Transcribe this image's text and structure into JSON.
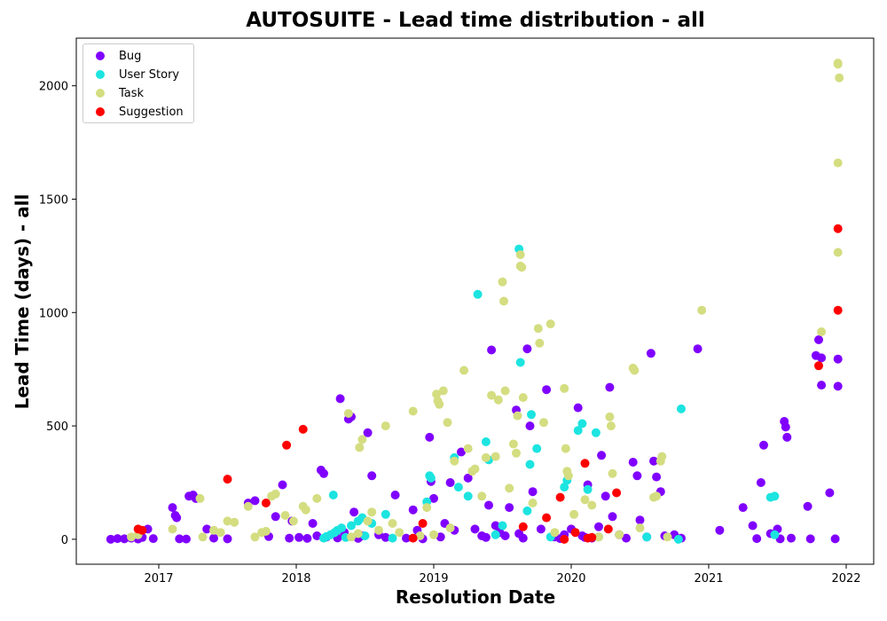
{
  "chart_data": {
    "type": "scatter",
    "title": "AUTOSUITE - Lead time distribution - all",
    "xlabel": "Resolution Date",
    "ylabel": "Lead Time (days) - all",
    "xlim": [
      2016.4,
      2022.2
    ],
    "ylim": [
      -110,
      2210
    ],
    "xticks": [
      2017,
      2018,
      2019,
      2020,
      2021,
      2022
    ],
    "yticks": [
      0,
      500,
      1000,
      1500,
      2000
    ],
    "grid": false,
    "legend_position": "top-left",
    "series": [
      {
        "name": "Bug",
        "color": "#8000ff",
        "points": [
          [
            2016.65,
            0
          ],
          [
            2016.7,
            3
          ],
          [
            2016.75,
            2
          ],
          [
            2016.8,
            5
          ],
          [
            2016.85,
            1
          ],
          [
            2016.88,
            8
          ],
          [
            2016.92,
            45
          ],
          [
            2016.96,
            3
          ],
          [
            2017.1,
            140
          ],
          [
            2017.12,
            105
          ],
          [
            2017.13,
            95
          ],
          [
            2017.15,
            2
          ],
          [
            2017.2,
            1
          ],
          [
            2017.22,
            190
          ],
          [
            2017.25,
            195
          ],
          [
            2017.27,
            180
          ],
          [
            2017.35,
            45
          ],
          [
            2017.4,
            5
          ],
          [
            2017.5,
            2
          ],
          [
            2017.65,
            160
          ],
          [
            2017.7,
            170
          ],
          [
            2017.8,
            12
          ],
          [
            2017.85,
            100
          ],
          [
            2017.9,
            240
          ],
          [
            2017.95,
            5
          ],
          [
            2017.97,
            80
          ],
          [
            2018.02,
            8
          ],
          [
            2018.08,
            4
          ],
          [
            2018.12,
            70
          ],
          [
            2018.15,
            15
          ],
          [
            2018.18,
            305
          ],
          [
            2018.2,
            290
          ],
          [
            2018.22,
            10
          ],
          [
            2018.3,
            6
          ],
          [
            2018.32,
            620
          ],
          [
            2018.35,
            30
          ],
          [
            2018.38,
            530
          ],
          [
            2018.4,
            540
          ],
          [
            2018.42,
            120
          ],
          [
            2018.45,
            4
          ],
          [
            2018.48,
            15
          ],
          [
            2018.52,
            470
          ],
          [
            2018.55,
            280
          ],
          [
            2018.6,
            20
          ],
          [
            2018.65,
            8
          ],
          [
            2018.72,
            195
          ],
          [
            2018.8,
            5
          ],
          [
            2018.85,
            130
          ],
          [
            2018.88,
            40
          ],
          [
            2018.92,
            2
          ],
          [
            2018.97,
            450
          ],
          [
            2018.98,
            255
          ],
          [
            2019.0,
            180
          ],
          [
            2019.05,
            10
          ],
          [
            2019.08,
            70
          ],
          [
            2019.12,
            250
          ],
          [
            2019.15,
            40
          ],
          [
            2019.2,
            385
          ],
          [
            2019.25,
            270
          ],
          [
            2019.3,
            45
          ],
          [
            2019.35,
            15
          ],
          [
            2019.38,
            8
          ],
          [
            2019.4,
            150
          ],
          [
            2019.42,
            835
          ],
          [
            2019.45,
            60
          ],
          [
            2019.48,
            30
          ],
          [
            2019.52,
            15
          ],
          [
            2019.55,
            140
          ],
          [
            2019.6,
            570
          ],
          [
            2019.62,
            25
          ],
          [
            2019.65,
            5
          ],
          [
            2019.68,
            840
          ],
          [
            2019.7,
            500
          ],
          [
            2019.72,
            210
          ],
          [
            2019.78,
            45
          ],
          [
            2019.82,
            660
          ],
          [
            2019.88,
            10
          ],
          [
            2019.92,
            3
          ],
          [
            2019.95,
            20
          ],
          [
            2020.0,
            45
          ],
          [
            2020.05,
            580
          ],
          [
            2020.08,
            15
          ],
          [
            2020.1,
            8
          ],
          [
            2020.12,
            240
          ],
          [
            2020.15,
            5
          ],
          [
            2020.2,
            55
          ],
          [
            2020.22,
            370
          ],
          [
            2020.25,
            190
          ],
          [
            2020.28,
            670
          ],
          [
            2020.3,
            100
          ],
          [
            2020.35,
            20
          ],
          [
            2020.4,
            5
          ],
          [
            2020.45,
            340
          ],
          [
            2020.48,
            280
          ],
          [
            2020.5,
            85
          ],
          [
            2020.55,
            10
          ],
          [
            2020.58,
            820
          ],
          [
            2020.6,
            345
          ],
          [
            2020.62,
            275
          ],
          [
            2020.65,
            210
          ],
          [
            2020.68,
            15
          ],
          [
            2020.75,
            20
          ],
          [
            2020.8,
            5
          ],
          [
            2020.92,
            840
          ],
          [
            2021.08,
            40
          ],
          [
            2021.25,
            140
          ],
          [
            2021.32,
            60
          ],
          [
            2021.35,
            3
          ],
          [
            2021.38,
            250
          ],
          [
            2021.4,
            415
          ],
          [
            2021.45,
            25
          ],
          [
            2021.5,
            45
          ],
          [
            2021.52,
            2
          ],
          [
            2021.55,
            520
          ],
          [
            2021.56,
            495
          ],
          [
            2021.57,
            450
          ],
          [
            2021.6,
            5
          ],
          [
            2021.72,
            145
          ],
          [
            2021.74,
            2
          ],
          [
            2021.78,
            810
          ],
          [
            2021.8,
            880
          ],
          [
            2021.82,
            800
          ],
          [
            2021.82,
            680
          ],
          [
            2021.88,
            205
          ],
          [
            2021.92,
            2
          ],
          [
            2021.94,
            795
          ],
          [
            2021.94,
            675
          ]
        ]
      },
      {
        "name": "User Story",
        "color": "#1ce4e0",
        "points": [
          [
            2018.2,
            5
          ],
          [
            2018.22,
            12
          ],
          [
            2018.25,
            20
          ],
          [
            2018.27,
            195
          ],
          [
            2018.28,
            30
          ],
          [
            2018.3,
            40
          ],
          [
            2018.33,
            50
          ],
          [
            2018.36,
            8
          ],
          [
            2018.4,
            60
          ],
          [
            2018.45,
            80
          ],
          [
            2018.48,
            95
          ],
          [
            2018.5,
            15
          ],
          [
            2018.55,
            70
          ],
          [
            2018.65,
            110
          ],
          [
            2018.7,
            5
          ],
          [
            2018.95,
            165
          ],
          [
            2018.97,
            280
          ],
          [
            2018.98,
            270
          ],
          [
            2019.15,
            360
          ],
          [
            2019.18,
            230
          ],
          [
            2019.25,
            190
          ],
          [
            2019.32,
            1080
          ],
          [
            2019.38,
            430
          ],
          [
            2019.4,
            350
          ],
          [
            2019.45,
            20
          ],
          [
            2019.5,
            60
          ],
          [
            2019.62,
            1280
          ],
          [
            2019.63,
            780
          ],
          [
            2019.68,
            125
          ],
          [
            2019.7,
            330
          ],
          [
            2019.71,
            550
          ],
          [
            2019.75,
            400
          ],
          [
            2019.85,
            10
          ],
          [
            2019.95,
            230
          ],
          [
            2019.97,
            260
          ],
          [
            2020.05,
            480
          ],
          [
            2020.08,
            510
          ],
          [
            2020.12,
            220
          ],
          [
            2020.18,
            470
          ],
          [
            2020.2,
            10
          ],
          [
            2020.55,
            10
          ],
          [
            2020.78,
            0
          ],
          [
            2020.8,
            575
          ],
          [
            2021.45,
            185
          ],
          [
            2021.48,
            190
          ],
          [
            2021.48,
            20
          ]
        ]
      },
      {
        "name": "Task",
        "color": "#d4dd80",
        "points": [
          [
            2016.8,
            10
          ],
          [
            2016.85,
            20
          ],
          [
            2017.1,
            45
          ],
          [
            2017.3,
            180
          ],
          [
            2017.32,
            10
          ],
          [
            2017.4,
            40
          ],
          [
            2017.45,
            30
          ],
          [
            2017.5,
            80
          ],
          [
            2017.55,
            75
          ],
          [
            2017.65,
            145
          ],
          [
            2017.7,
            10
          ],
          [
            2017.75,
            30
          ],
          [
            2017.78,
            35
          ],
          [
            2017.82,
            190
          ],
          [
            2017.85,
            200
          ],
          [
            2017.92,
            105
          ],
          [
            2017.98,
            80
          ],
          [
            2018.05,
            145
          ],
          [
            2018.07,
            130
          ],
          [
            2018.15,
            180
          ],
          [
            2018.38,
            555
          ],
          [
            2018.4,
            10
          ],
          [
            2018.45,
            25
          ],
          [
            2018.46,
            405
          ],
          [
            2018.48,
            440
          ],
          [
            2018.52,
            80
          ],
          [
            2018.55,
            120
          ],
          [
            2018.6,
            40
          ],
          [
            2018.65,
            500
          ],
          [
            2018.7,
            70
          ],
          [
            2018.75,
            30
          ],
          [
            2018.85,
            565
          ],
          [
            2018.9,
            15
          ],
          [
            2018.95,
            140
          ],
          [
            2019.0,
            20
          ],
          [
            2019.02,
            640
          ],
          [
            2019.03,
            610
          ],
          [
            2019.04,
            595
          ],
          [
            2019.07,
            655
          ],
          [
            2019.1,
            515
          ],
          [
            2019.12,
            50
          ],
          [
            2019.15,
            345
          ],
          [
            2019.22,
            745
          ],
          [
            2019.25,
            400
          ],
          [
            2019.28,
            300
          ],
          [
            2019.3,
            310
          ],
          [
            2019.35,
            190
          ],
          [
            2019.38,
            360
          ],
          [
            2019.42,
            635
          ],
          [
            2019.45,
            365
          ],
          [
            2019.47,
            615
          ],
          [
            2019.5,
            1135
          ],
          [
            2019.51,
            1050
          ],
          [
            2019.52,
            655
          ],
          [
            2019.55,
            225
          ],
          [
            2019.58,
            420
          ],
          [
            2019.6,
            380
          ],
          [
            2019.61,
            545
          ],
          [
            2019.63,
            1255
          ],
          [
            2019.63,
            1205
          ],
          [
            2019.64,
            1200
          ],
          [
            2019.65,
            625
          ],
          [
            2019.72,
            160
          ],
          [
            2019.76,
            930
          ],
          [
            2019.77,
            865
          ],
          [
            2019.8,
            515
          ],
          [
            2019.85,
            950
          ],
          [
            2019.88,
            30
          ],
          [
            2019.95,
            665
          ],
          [
            2019.96,
            400
          ],
          [
            2019.97,
            300
          ],
          [
            2019.98,
            280
          ],
          [
            2020.02,
            110
          ],
          [
            2020.1,
            175
          ],
          [
            2020.15,
            150
          ],
          [
            2020.2,
            10
          ],
          [
            2020.28,
            540
          ],
          [
            2020.29,
            500
          ],
          [
            2020.3,
            290
          ],
          [
            2020.35,
            20
          ],
          [
            2020.45,
            755
          ],
          [
            2020.46,
            745
          ],
          [
            2020.5,
            50
          ],
          [
            2020.6,
            185
          ],
          [
            2020.62,
            190
          ],
          [
            2020.65,
            345
          ],
          [
            2020.66,
            365
          ],
          [
            2020.7,
            10
          ],
          [
            2020.95,
            1010
          ],
          [
            2021.82,
            915
          ],
          [
            2021.94,
            2100
          ],
          [
            2021.94,
            2095
          ],
          [
            2021.95,
            2035
          ],
          [
            2021.94,
            1660
          ],
          [
            2021.94,
            1265
          ]
        ]
      },
      {
        "name": "Suggestion",
        "color": "#ff0000",
        "points": [
          [
            2016.85,
            45
          ],
          [
            2016.88,
            40
          ],
          [
            2017.5,
            265
          ],
          [
            2017.78,
            160
          ],
          [
            2017.93,
            415
          ],
          [
            2018.05,
            485
          ],
          [
            2018.85,
            5
          ],
          [
            2018.92,
            70
          ],
          [
            2019.65,
            55
          ],
          [
            2019.82,
            95
          ],
          [
            2019.92,
            185
          ],
          [
            2019.95,
            0
          ],
          [
            2020.03,
            30
          ],
          [
            2020.1,
            335
          ],
          [
            2020.12,
            5
          ],
          [
            2020.15,
            8
          ],
          [
            2020.27,
            45
          ],
          [
            2020.33,
            205
          ],
          [
            2021.8,
            765
          ],
          [
            2021.94,
            1370
          ],
          [
            2021.94,
            1010
          ]
        ]
      }
    ]
  }
}
